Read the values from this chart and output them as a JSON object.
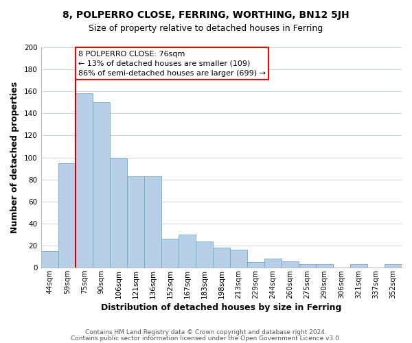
{
  "title": "8, POLPERRO CLOSE, FERRING, WORTHING, BN12 5JH",
  "subtitle": "Size of property relative to detached houses in Ferring",
  "xlabel": "Distribution of detached houses by size in Ferring",
  "ylabel": "Number of detached properties",
  "bar_labels": [
    "44sqm",
    "59sqm",
    "75sqm",
    "90sqm",
    "106sqm",
    "121sqm",
    "136sqm",
    "152sqm",
    "167sqm",
    "183sqm",
    "198sqm",
    "213sqm",
    "229sqm",
    "244sqm",
    "260sqm",
    "275sqm",
    "290sqm",
    "306sqm",
    "321sqm",
    "337sqm",
    "352sqm"
  ],
  "bar_values": [
    15,
    95,
    158,
    150,
    100,
    83,
    83,
    26,
    30,
    24,
    18,
    16,
    5,
    8,
    6,
    3,
    3,
    0,
    3,
    0,
    3
  ],
  "bar_color": "#b8cfe8",
  "bar_edge_color": "#6fa8d0",
  "bar_edge_width": 0.6,
  "highlight_color": "#cc0000",
  "highlight_index": 2,
  "annotation_text_line1": "8 POLPERRO CLOSE: 76sqm",
  "annotation_text_line2": "← 13% of detached houses are smaller (109)",
  "annotation_text_line3": "86% of semi-detached houses are larger (699) →",
  "ylim": [
    0,
    200
  ],
  "yticks": [
    0,
    20,
    40,
    60,
    80,
    100,
    120,
    140,
    160,
    180,
    200
  ],
  "footer_line1": "Contains HM Land Registry data © Crown copyright and database right 2024.",
  "footer_line2": "Contains public sector information licensed under the Open Government Licence v3.0.",
  "background_color": "#ffffff",
  "grid_color": "#c8d8e8",
  "title_fontsize": 10,
  "subtitle_fontsize": 9,
  "axis_label_fontsize": 9,
  "tick_fontsize": 7.5,
  "annotation_fontsize": 8,
  "footer_fontsize": 6.5
}
